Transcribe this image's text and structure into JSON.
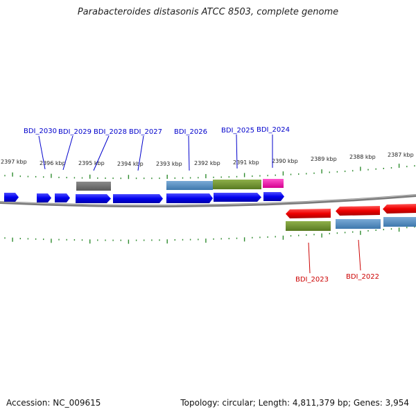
{
  "title": "Parabacteroides distasonis ATCC 8503, complete genome",
  "footer": {
    "accession": "Accession: NC_009615",
    "topology": "Topology: circular; Length: 4,811,379 bp; Genes: 3,954"
  },
  "colors": {
    "forward_label": "#0000cc",
    "reverse_label": "#cc0000",
    "tick": "#2e8b2e",
    "backbone": "#777777"
  },
  "scale_labels": [
    "2397 kbp",
    "2396 kbp",
    "2395 kbp",
    "2394 kbp",
    "2393 kbp",
    "2392 kbp",
    "2391 kbp",
    "2390 kbp",
    "2389 kbp",
    "2388 kbp",
    "2387 kbp"
  ],
  "genes_forward": [
    {
      "label": "BDI_2030"
    },
    {
      "label": "BDI_2029"
    },
    {
      "label": "BDI_2028"
    },
    {
      "label": "BDI_2027"
    },
    {
      "label": "BDI_2026"
    },
    {
      "label": "BDI_2025"
    },
    {
      "label": "BDI_2024"
    }
  ],
  "genes_reverse": [
    {
      "label": "BDI_2023"
    },
    {
      "label": "BDI_2022"
    }
  ]
}
